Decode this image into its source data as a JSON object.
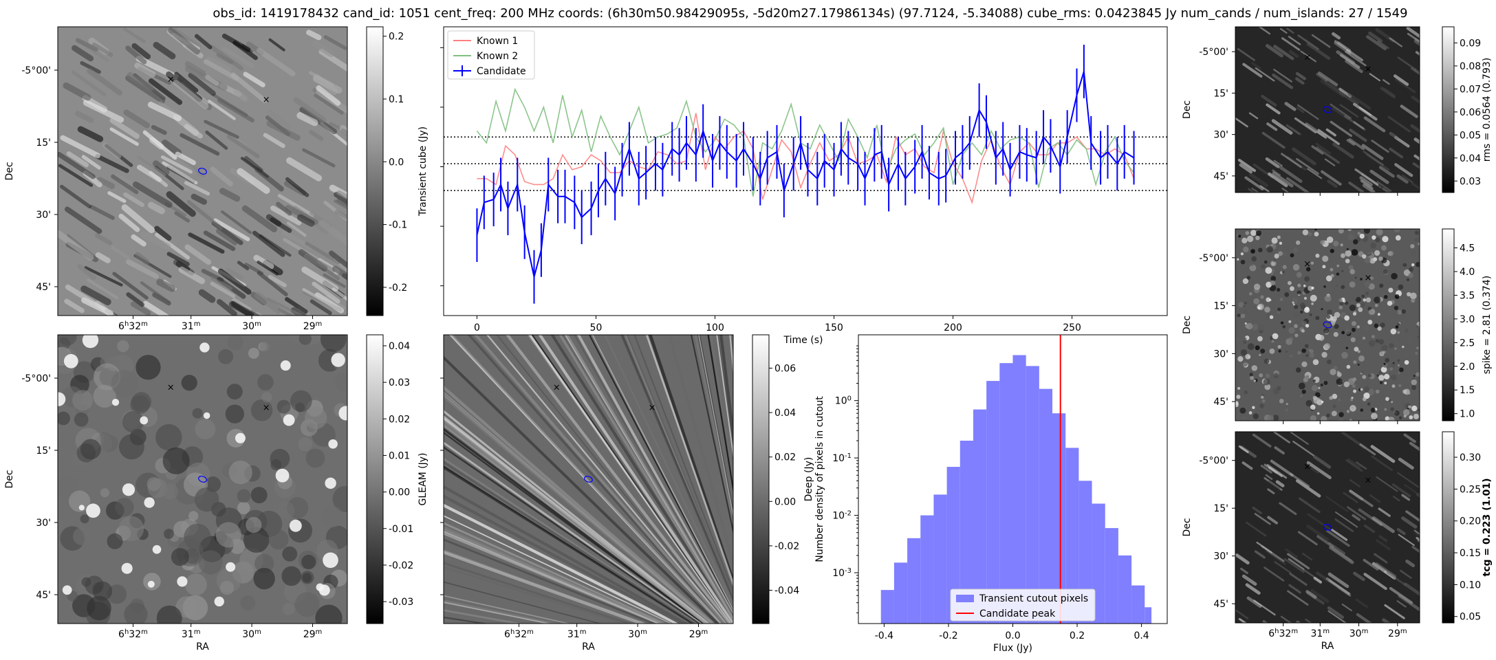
{
  "title": "obs_id: 1419178432 cand_id: 1051 cent_freq: 200 MHz coords: (6h30m50.98429095s, -5d20m27.17986134s) (97.7124, -5.34088) cube_rms: 0.0423845 Jy num_cands / num_islands: 27 / 1549",
  "colors": {
    "candidate": "#0000ff",
    "known1": "#ff7f7f",
    "known2": "#7fbf7f",
    "peak": "#ff0000",
    "hist": "#7f7fff",
    "red_marker": "#ff0000",
    "green_marker": "#008000"
  },
  "sky_axes": {
    "ra_ticks": [
      "6h32m",
      "31m",
      "30m",
      "29m"
    ],
    "dec_ticks": [
      "-5°00'",
      "15'",
      "30'",
      "45'"
    ],
    "xlabel": "RA",
    "ylabel": "Dec"
  },
  "image_panels": [
    {
      "id": "transient",
      "colorbar_label": "Transient cube (Jy)",
      "colorbar_ticks": [
        "0.2",
        "0.1",
        "0.0",
        "-0.1",
        "-0.2"
      ],
      "colorbar_range": [
        -0.245,
        0.215
      ],
      "red_marker": [
        0.39,
        0.18
      ],
      "green_marker": [
        0.72,
        0.25
      ],
      "ellipse": [
        0.5,
        0.5
      ]
    },
    {
      "id": "gleam",
      "colorbar_label": "GLEAM (Jy)",
      "colorbar_ticks": [
        "0.04",
        "0.03",
        "0.02",
        "0.01",
        "0.00",
        "-0.01",
        "-0.02",
        "-0.03"
      ],
      "colorbar_range": [
        -0.036,
        0.043
      ],
      "red_marker": [
        0.39,
        0.18
      ],
      "green_marker": [
        0.72,
        0.25
      ],
      "ellipse": [
        0.5,
        0.5
      ]
    },
    {
      "id": "deep",
      "colorbar_label": "Deep (Jy)",
      "colorbar_ticks": [
        "0.06",
        "0.04",
        "0.02",
        "0.00",
        "-0.02",
        "-0.04"
      ],
      "colorbar_range": [
        -0.055,
        0.075
      ],
      "red_marker": [
        0.39,
        0.18
      ],
      "green_marker": [
        0.72,
        0.25
      ],
      "ellipse": [
        0.5,
        0.5
      ]
    },
    {
      "id": "rms",
      "colorbar_label": "rms = 0.0564 (0.793)",
      "colorbar_ticks": [
        "0.09",
        "0.08",
        "0.07",
        "0.06",
        "0.05",
        "0.04",
        "0.03"
      ],
      "colorbar_range": [
        0.025,
        0.097
      ],
      "red_marker": [
        0.39,
        0.18
      ],
      "green_marker": [
        0.72,
        0.25
      ],
      "ellipse": [
        0.5,
        0.5
      ]
    },
    {
      "id": "spike",
      "colorbar_label": "spike = 2.81 (0.374)",
      "colorbar_ticks": [
        "4.5",
        "4.0",
        "3.5",
        "3.0",
        "2.5",
        "2.0",
        "1.5",
        "1.0"
      ],
      "colorbar_range": [
        0.85,
        4.9
      ],
      "red_marker": [
        0.39,
        0.18
      ],
      "green_marker": [
        0.72,
        0.25
      ],
      "ellipse": [
        0.5,
        0.5
      ]
    },
    {
      "id": "tcg",
      "colorbar_label": "tcg = 0.223 (1.01)",
      "colorbar_bold": true,
      "colorbar_ticks": [
        "0.30",
        "0.25",
        "0.20",
        "0.15",
        "0.10",
        "0.05"
      ],
      "colorbar_range": [
        0.04,
        0.34
      ],
      "red_marker": [
        0.39,
        0.18
      ],
      "green_marker": [
        0.72,
        0.25
      ],
      "ellipse": [
        0.5,
        0.5
      ]
    }
  ],
  "chart_data": [
    {
      "type": "line",
      "xlabel": "Time (s)",
      "ylabel": "",
      "x_ticks": [
        0,
        50,
        100,
        150,
        200,
        250
      ],
      "xlim": [
        -14,
        290
      ],
      "ylim": [
        -0.5,
        0.47
      ],
      "hlines": [
        0.1,
        0.01,
        -0.08
      ],
      "legend": {
        "position": "top-left",
        "entries": [
          "Known 1",
          "Known 2",
          "Candidate"
        ]
      },
      "series": [
        {
          "name": "Known 1",
          "color": "#ff7f7f",
          "x": [
            0,
            4,
            8,
            12,
            16,
            20,
            24,
            28,
            32,
            36,
            40,
            44,
            48,
            52,
            56,
            60,
            64,
            68,
            72,
            76,
            80,
            84,
            88,
            92,
            96,
            100,
            104,
            108,
            112,
            116,
            120,
            124,
            128,
            132,
            136,
            140,
            144,
            148,
            152,
            156,
            160,
            164,
            168,
            172,
            176,
            180,
            184,
            188,
            192,
            196,
            200,
            204,
            208,
            212,
            216,
            220,
            224,
            228,
            232,
            236,
            240,
            244,
            248,
            252,
            256,
            260,
            264,
            268,
            272,
            276
          ],
          "values": [
            -0.04,
            -0.04,
            -0.06,
            0.07,
            0.04,
            -0.05,
            -0.06,
            -0.06,
            -0.04,
            0.04,
            -0.01,
            0.0,
            0.04,
            0.02,
            -0.02,
            -0.02,
            0.02,
            0.0,
            -0.01,
            0.05,
            0.04,
            0.01,
            0.02,
            0.18,
            -0.01,
            0.1,
            0.06,
            0.1,
            0.12,
            0.06,
            -0.11,
            -0.01,
            0.09,
            0.05,
            -0.07,
            0.01,
            0.08,
            0.02,
            0.04,
            0.1,
            0.01,
            0.02,
            0.04,
            -0.05,
            0.1,
            0.04,
            0.06,
            0.0,
            -0.02,
            0.12,
            0.01,
            -0.04,
            -0.12,
            0.02,
            0.09,
            0.0,
            -0.06,
            0.05,
            0.08,
            0.04,
            0.04,
            0.08,
            0.08,
            0.1,
            0.06,
            0.06,
            0.04,
            0.06,
            0.04,
            -0.04
          ]
        },
        {
          "name": "Known 2",
          "color": "#7fbf7f",
          "x": [
            0,
            4,
            8,
            12,
            16,
            20,
            24,
            28,
            32,
            36,
            40,
            44,
            48,
            52,
            56,
            60,
            64,
            68,
            72,
            76,
            80,
            84,
            88,
            92,
            96,
            100,
            104,
            108,
            112,
            116,
            120,
            124,
            128,
            132,
            136,
            140,
            144,
            148,
            152,
            156,
            160,
            164,
            168,
            172,
            176,
            180,
            184,
            188,
            192,
            196,
            200,
            204,
            208,
            212,
            216,
            220,
            224,
            228,
            232,
            236,
            240,
            244,
            248,
            252,
            256,
            260,
            264,
            268,
            272,
            276
          ],
          "values": [
            0.12,
            0.08,
            0.22,
            0.12,
            0.26,
            0.2,
            0.12,
            0.2,
            0.08,
            0.24,
            0.1,
            0.19,
            0.05,
            0.17,
            0.1,
            0.04,
            0.12,
            0.2,
            0.08,
            0.1,
            0.11,
            0.13,
            0.22,
            0.1,
            0.05,
            0.09,
            0.16,
            0.14,
            0.1,
            -0.1,
            0.08,
            0.06,
            0.12,
            0.21,
            0.08,
            0.06,
            0.14,
            0.08,
            0.02,
            0.16,
            0.1,
            0.03,
            0.14,
            -0.02,
            0.06,
            0.09,
            0.11,
            0.04,
            0.08,
            0.13,
            -0.06,
            0.04,
            0.08,
            0.04,
            0.12,
            0.06,
            0.09,
            0.1,
            0.08,
            -0.07,
            0.06,
            0.08,
            0.04,
            0.09,
            0.06,
            -0.06,
            0.05,
            0.1,
            0.02,
            -0.02
          ]
        },
        {
          "name": "Candidate",
          "color": "#0000ff",
          "errorbars": true,
          "x": [
            0,
            3,
            7,
            10,
            13,
            17,
            20,
            24,
            27,
            30,
            34,
            37,
            41,
            44,
            48,
            51,
            54,
            58,
            61,
            64,
            68,
            71,
            75,
            78,
            82,
            85,
            88,
            92,
            95,
            99,
            102,
            105,
            109,
            112,
            116,
            119,
            122,
            126,
            129,
            133,
            136,
            139,
            143,
            146,
            150,
            153,
            156,
            160,
            163,
            167,
            170,
            173,
            177,
            180,
            184,
            187,
            190,
            194,
            197,
            201,
            204,
            207,
            211,
            214,
            218,
            221,
            224,
            228,
            231,
            235,
            238,
            241,
            245,
            248,
            252,
            255,
            258,
            262,
            265,
            269,
            272,
            276
          ],
          "values": [
            -0.23,
            -0.12,
            -0.11,
            -0.06,
            -0.14,
            -0.06,
            -0.22,
            -0.37,
            -0.28,
            -0.06,
            -0.1,
            -0.1,
            -0.12,
            -0.17,
            -0.14,
            -0.08,
            -0.04,
            -0.09,
            -0.01,
            0.06,
            -0.04,
            -0.02,
            0.01,
            -0.01,
            0.06,
            0.04,
            0.08,
            0.04,
            0.12,
            0.02,
            0.08,
            0.05,
            0.02,
            0.06,
            0.01,
            -0.04,
            0.03,
            0.05,
            -0.08,
            0.01,
            0.08,
            -0.01,
            -0.04,
            0.02,
            -0.01,
            0.06,
            0.03,
            0.01,
            -0.04,
            0.04,
            0.05,
            -0.06,
            0.01,
            -0.04,
            0.0,
            0.05,
            -0.02,
            -0.04,
            -0.03,
            0.03,
            0.05,
            0.08,
            0.19,
            0.15,
            0.03,
            0.06,
            -0.01,
            0.05,
            0.04,
            0.03,
            0.1,
            0.07,
            0.0,
            0.1,
            0.24,
            0.32,
            0.08,
            0.03,
            0.05,
            0.01,
            0.05,
            0.03
          ],
          "error": 0.09
        }
      ]
    },
    {
      "type": "histogram",
      "title": "",
      "xlabel": "Flux (Jy)",
      "ylabel": "Number density of pixels in cutout",
      "yscale": "log",
      "ylim": [
        0.00013,
        14
      ],
      "xlim": [
        -0.48,
        0.48
      ],
      "x_ticks": [
        "-0.4",
        "-0.2",
        "0.0",
        "0.2",
        "0.4"
      ],
      "y_ticks": [
        "10^0",
        "10^-1",
        "10^-2",
        "10^-3"
      ],
      "bin_edges": [
        -0.41,
        -0.369,
        -0.328,
        -0.287,
        -0.246,
        -0.205,
        -0.164,
        -0.123,
        -0.082,
        -0.041,
        0.0,
        0.041,
        0.082,
        0.123,
        0.164,
        0.205,
        0.246,
        0.287,
        0.328,
        0.369,
        0.41,
        0.431
      ],
      "values": [
        0.0005,
        0.0015,
        0.004,
        0.01,
        0.023,
        0.07,
        0.2,
        0.7,
        2.2,
        4.5,
        6.2,
        4.0,
        1.6,
        0.6,
        0.15,
        0.04,
        0.016,
        0.006,
        0.002,
        0.0006,
        0.00025
      ],
      "vline": 0.148,
      "legend": {
        "position": "bottom-center",
        "entries": [
          "Transient cutout pixels",
          "Candidate peak"
        ]
      }
    }
  ]
}
